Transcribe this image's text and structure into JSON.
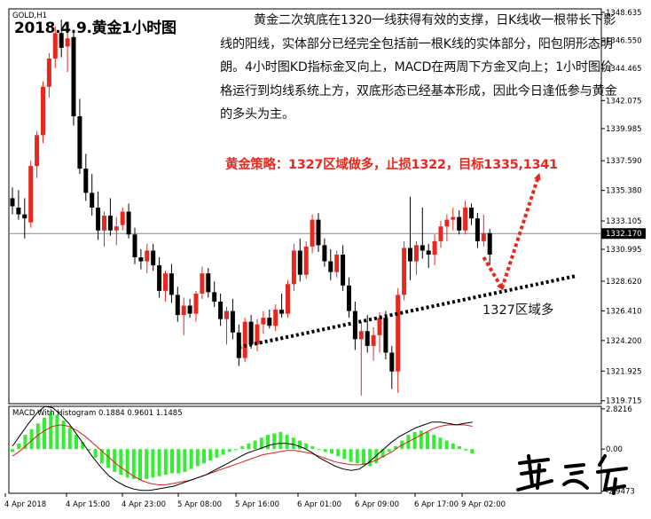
{
  "symbol_label": "GOLD,H1",
  "title": "2018.4.9.黄金1小时图",
  "analysis": "黄金二次筑底在1320一线获得有效的支撑，日K线收一根带长下影线的阳线，实体部分已经完全包括前一根K线的实体部分，阳包阴形态明朗。4小时图KD指标金叉向上，MACD在两周下方金叉向上；1小时图价格运行到均线系统上方，双底形态已经基本形成，因此今日逢低参与黄金的多头为主。",
  "strategy": "黄金策略：1327区域做多，止损1322，目标1335,1341",
  "zone_label": "1327区域多",
  "colors": {
    "bull_candle": "#e8281e",
    "bear_candle": "#000000",
    "arrow": "#e8281e",
    "trendline": "#000000",
    "macd_histogram": "#33ee33",
    "macd_line": "#000000",
    "signal_line": "#d81e1e"
  },
  "chart_data": [
    {
      "type": "candlestick",
      "panel": "price",
      "symbol": "GOLD",
      "timeframe": "H1",
      "price_ticks": [
        "1348.635",
        "1346.550",
        "1344.465",
        "1342.075",
        "1339.985",
        "1337.590",
        "1335.380",
        "1333.105",
        "1330.995",
        "1328.620",
        "1326.410",
        "1324.200",
        "1321.925",
        "1319.715"
      ],
      "current_price": "1332.170",
      "current_price_value": 1332.17,
      "ylim": [
        1319.5,
        1348.9
      ],
      "time_labels": [
        "4 Apr 2018",
        "4 Apr 15:00",
        "4 Apr 23:00",
        "5 Apr 08:00",
        "5 Apr 16:00",
        "6 Apr 01:00",
        "6 Apr 09:00",
        "6 Apr 17:00",
        "9 Apr 02:00"
      ],
      "candles": [
        [
          1334.8,
          1335.6,
          1333.6,
          1334.2
        ],
        [
          1334.1,
          1335.4,
          1333.2,
          1333.6
        ],
        [
          1333.6,
          1334.8,
          1331.8,
          1333.3
        ],
        [
          1333.0,
          1337.6,
          1332.6,
          1337.2
        ],
        [
          1337.2,
          1339.8,
          1336.3,
          1339.5
        ],
        [
          1339.5,
          1343.5,
          1338.9,
          1343.1
        ],
        [
          1343.1,
          1345.6,
          1342.3,
          1345.2
        ],
        [
          1345.2,
          1347.6,
          1344.5,
          1347.1
        ],
        [
          1347.1,
          1348.1,
          1345.3,
          1346.0
        ],
        [
          1346.1,
          1347.3,
          1344.2,
          1346.7
        ],
        [
          1346.8,
          1347.3,
          1340.2,
          1340.9
        ],
        [
          1340.9,
          1342.2,
          1336.6,
          1337.0
        ],
        [
          1337.0,
          1338.1,
          1334.6,
          1335.2
        ],
        [
          1335.2,
          1336.6,
          1333.5,
          1334.1
        ],
        [
          1334.1,
          1335.3,
          1331.7,
          1332.4
        ],
        [
          1332.4,
          1333.8,
          1331.2,
          1333.5
        ],
        [
          1333.5,
          1334.8,
          1332.0,
          1332.4
        ],
        [
          1332.4,
          1333.4,
          1331.3,
          1332.7
        ],
        [
          1332.8,
          1334.1,
          1332.4,
          1333.8
        ],
        [
          1333.8,
          1334.4,
          1331.8,
          1332.1
        ],
        [
          1332.1,
          1332.6,
          1329.9,
          1330.4
        ],
        [
          1330.4,
          1331.0,
          1329.5,
          1330.1
        ],
        [
          1330.1,
          1331.4,
          1329.2,
          1330.9
        ],
        [
          1330.9,
          1331.4,
          1329.4,
          1329.8
        ],
        [
          1329.8,
          1330.4,
          1327.4,
          1327.9
        ],
        [
          1327.9,
          1329.4,
          1327.1,
          1329.2
        ],
        [
          1329.2,
          1329.9,
          1327.0,
          1327.6
        ],
        [
          1327.6,
          1328.2,
          1325.6,
          1326.1
        ],
        [
          1326.1,
          1327.4,
          1324.6,
          1326.8
        ],
        [
          1326.8,
          1327.3,
          1325.9,
          1326.2
        ],
        [
          1326.2,
          1327.9,
          1325.6,
          1327.7
        ],
        [
          1327.7,
          1329.7,
          1327.3,
          1329.2
        ],
        [
          1329.2,
          1329.6,
          1327.4,
          1327.8
        ],
        [
          1327.8,
          1328.6,
          1326.7,
          1327.1
        ],
        [
          1327.1,
          1327.7,
          1325.3,
          1325.8
        ],
        [
          1325.8,
          1326.7,
          1323.9,
          1326.4
        ],
        [
          1326.4,
          1327.3,
          1324.3,
          1324.8
        ],
        [
          1324.8,
          1325.4,
          1322.3,
          1322.9
        ],
        [
          1322.9,
          1325.9,
          1322.6,
          1325.6
        ],
        [
          1325.6,
          1326.1,
          1323.6,
          1323.9
        ],
        [
          1323.9,
          1325.8,
          1323.4,
          1325.4
        ],
        [
          1325.4,
          1326.4,
          1324.7,
          1325.9
        ],
        [
          1325.9,
          1326.5,
          1325.1,
          1325.3
        ],
        [
          1325.3,
          1326.9,
          1324.9,
          1326.5
        ],
        [
          1326.5,
          1327.7,
          1325.9,
          1326.2
        ],
        [
          1326.2,
          1328.7,
          1325.9,
          1328.4
        ],
        [
          1328.4,
          1331.4,
          1327.9,
          1330.9
        ],
        [
          1330.9,
          1331.8,
          1328.6,
          1329.1
        ],
        [
          1329.1,
          1331.6,
          1328.8,
          1331.2
        ],
        [
          1331.2,
          1333.6,
          1330.7,
          1333.2
        ],
        [
          1333.2,
          1333.7,
          1330.8,
          1331.3
        ],
        [
          1331.3,
          1331.8,
          1329.7,
          1330.1
        ],
        [
          1330.1,
          1331.0,
          1328.7,
          1329.3
        ],
        [
          1329.3,
          1330.9,
          1328.9,
          1330.6
        ],
        [
          1330.6,
          1331.3,
          1327.9,
          1328.3
        ],
        [
          1328.3,
          1328.9,
          1325.9,
          1326.4
        ],
        [
          1326.4,
          1327.1,
          1323.5,
          1324.3
        ],
        [
          1324.3,
          1325.6,
          1320.1,
          1324.9
        ],
        [
          1324.9,
          1326.1,
          1323.3,
          1323.8
        ],
        [
          1323.8,
          1325.2,
          1322.7,
          1324.6
        ],
        [
          1324.6,
          1326.3,
          1323.3,
          1325.9
        ],
        [
          1325.9,
          1326.4,
          1322.8,
          1323.3
        ],
        [
          1323.3,
          1323.8,
          1320.6,
          1321.9
        ],
        [
          1321.9,
          1328.1,
          1320.3,
          1327.6
        ],
        [
          1327.6,
          1331.6,
          1327.2,
          1331.1
        ],
        [
          1331.1,
          1334.9,
          1328.7,
          1330.1
        ],
        [
          1330.1,
          1331.6,
          1329.1,
          1331.3
        ],
        [
          1331.3,
          1334.1,
          1330.3,
          1330.9
        ],
        [
          1330.9,
          1331.4,
          1329.6,
          1330.6
        ],
        [
          1330.6,
          1332.1,
          1329.8,
          1331.6
        ],
        [
          1331.6,
          1333.1,
          1331.1,
          1332.7
        ],
        [
          1332.7,
          1333.6,
          1331.6,
          1333.2
        ],
        [
          1333.2,
          1334.1,
          1332.4,
          1333.4
        ],
        [
          1333.4,
          1333.9,
          1332.1,
          1332.4
        ],
        [
          1332.4,
          1334.6,
          1332.1,
          1334.1
        ],
        [
          1334.1,
          1334.4,
          1332.8,
          1333.3
        ],
        [
          1333.3,
          1333.7,
          1331.1,
          1331.6
        ],
        [
          1331.6,
          1333.6,
          1331.2,
          1332.2
        ],
        [
          1332.2,
          1332.5,
          1329.8,
          1330.6
        ]
      ],
      "annotations": [
        {
          "type": "trendline",
          "style": "dotted",
          "from": [
            37,
            1323.7
          ],
          "to": [
            92,
            1329.0
          ]
        },
        {
          "type": "arrow",
          "style": "dotted",
          "color": "red",
          "from": [
            77,
            1330.4
          ],
          "to": [
            80,
            1328.1
          ]
        },
        {
          "type": "arrow",
          "style": "dotted",
          "color": "red",
          "from": [
            80,
            1328.1
          ],
          "to": [
            86,
            1336.5
          ]
        }
      ]
    },
    {
      "type": "macd",
      "panel": "indicator",
      "title": "MACD With Histogram 0.1884 0.9601 1.1485",
      "values_printed": [
        0.1884,
        0.9601,
        1.1485
      ],
      "y_ticks": [
        "2.8216",
        "0.00",
        "-2.9473"
      ],
      "ylim": [
        -3.1,
        3.0
      ],
      "histogram": [
        -0.2,
        0.4,
        1.0,
        1.4,
        1.8,
        2.2,
        2.6,
        2.4,
        2.0,
        1.5,
        1.0,
        0.5,
        -0.1,
        -0.6,
        -1.0,
        -1.3,
        -1.6,
        -1.8,
        -2.0,
        -2.1,
        -2.2,
        -2.1,
        -2.0,
        -1.9,
        -1.8,
        -1.7,
        -1.7,
        -1.6,
        -1.4,
        -1.2,
        -1.0,
        -0.8,
        -0.6,
        -0.4,
        -0.2,
        0.0,
        0.2,
        0.4,
        0.6,
        0.8,
        1.0,
        1.1,
        1.2,
        1.0,
        0.8,
        0.6,
        0.4,
        0.2,
        0.0,
        -0.2,
        -0.3,
        -0.5,
        -0.7,
        -0.9,
        -1.0,
        -1.1,
        -1.2,
        -1.0,
        -0.6,
        -0.2,
        0.2,
        0.6,
        1.0,
        1.2,
        1.3,
        1.2,
        1.0,
        0.8,
        0.6,
        0.4,
        0.2,
        -0.1,
        -0.3
      ],
      "macd_line": [
        0.2,
        1.0,
        1.8,
        2.5,
        3.0,
        2.9,
        2.4,
        1.8,
        1.0,
        0.2,
        -0.6,
        -1.3,
        -1.9,
        -2.3,
        -2.6,
        -2.8,
        -2.9,
        -2.9,
        -2.8,
        -2.7,
        -2.6,
        -2.4,
        -2.2,
        -2.0,
        -1.8,
        -1.5,
        -1.2,
        -0.9,
        -0.6,
        -0.3,
        -0.1,
        0.1,
        0.3,
        0.4,
        0.4,
        0.3,
        0.1,
        -0.2,
        -0.6,
        -0.9,
        -1.2,
        -1.4,
        -1.5,
        -1.4,
        -1.0,
        -0.5,
        0.0,
        0.5,
        0.9,
        1.2,
        1.5,
        1.7,
        1.9,
        1.9,
        1.8,
        1.7,
        1.8,
        1.9
      ],
      "signal_line": [
        -0.5,
        -0.1,
        0.4,
        0.9,
        1.3,
        1.6,
        1.7,
        1.6,
        1.3,
        0.9,
        0.4,
        -0.1,
        -0.6,
        -1.1,
        -1.5,
        -1.9,
        -2.2,
        -2.4,
        -2.5,
        -2.5,
        -2.4,
        -2.3,
        -2.2,
        -2.0,
        -1.8,
        -1.6,
        -1.4,
        -1.2,
        -1.0,
        -0.8,
        -0.6,
        -0.4,
        -0.3,
        -0.2,
        -0.1,
        -0.1,
        -0.2,
        -0.3,
        -0.5,
        -0.7,
        -0.9,
        -1.0,
        -1.1,
        -1.1,
        -1.0,
        -0.8,
        -0.5,
        -0.2,
        0.2,
        0.5,
        0.8,
        1.1,
        1.4,
        1.6,
        1.7,
        1.7,
        1.7,
        1.6
      ]
    }
  ]
}
